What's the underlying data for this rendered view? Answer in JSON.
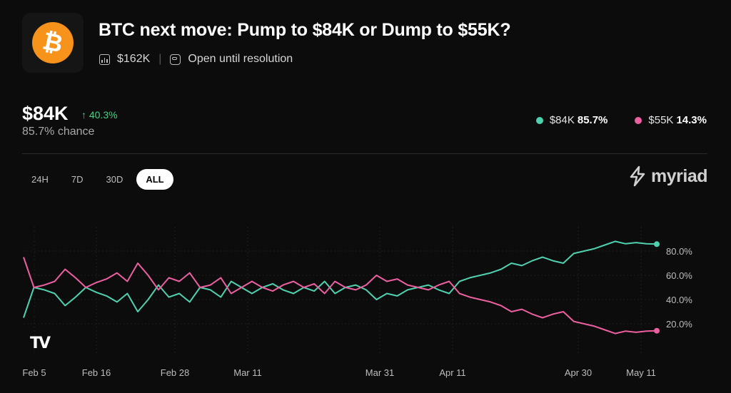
{
  "header": {
    "logo_icon": "bitcoin-logo",
    "logo_glyph": "₿",
    "title": "BTC next move: Pump to $84K or Dump to $55K?",
    "volume": "$162K",
    "volume_icon": "chart-box-icon",
    "status": "Open until resolution",
    "status_icon": "infinity-box-icon"
  },
  "summary": {
    "price": "$84K",
    "change": "↑ 40.3%",
    "chance": "85.7% chance"
  },
  "legend": [
    {
      "label": "$84K",
      "value": "85.7%",
      "color": "#4fd1b0"
    },
    {
      "label": "$55K",
      "value": "14.3%",
      "color": "#ec5fa0"
    }
  ],
  "tabs": [
    "24H",
    "7D",
    "30D",
    "ALL"
  ],
  "active_tab": "ALL",
  "brand": "myriad",
  "watermark": "TV",
  "chart_data": {
    "type": "line",
    "x_ticks": [
      "Feb 5",
      "Feb 16",
      "Feb 28",
      "Mar 11",
      "Mar 31",
      "Apr 11",
      "Apr 30",
      "May 11"
    ],
    "y_ticks": [
      "20.0%",
      "40.0%",
      "60.0%",
      "80.0%"
    ],
    "ylim": [
      0,
      100
    ],
    "grid": true,
    "y_axis_position": "right",
    "series": [
      {
        "name": "$84K",
        "color": "#4fd1b0",
        "values": [
          25,
          50,
          48,
          45,
          35,
          42,
          50,
          46,
          43,
          38,
          45,
          30,
          40,
          52,
          42,
          45,
          38,
          50,
          48,
          42,
          55,
          50,
          45,
          50,
          53,
          48,
          45,
          50,
          47,
          55,
          45,
          50,
          52,
          48,
          40,
          45,
          43,
          48,
          50,
          52,
          48,
          45,
          55,
          58,
          60,
          62,
          65,
          70,
          68,
          72,
          75,
          72,
          70,
          78,
          80,
          82,
          85,
          88,
          86,
          87,
          86,
          85.7
        ]
      },
      {
        "name": "$55K",
        "color": "#ec5fa0",
        "values": [
          75,
          50,
          52,
          55,
          65,
          58,
          50,
          54,
          57,
          62,
          55,
          70,
          60,
          48,
          58,
          55,
          62,
          50,
          52,
          58,
          45,
          50,
          55,
          50,
          47,
          52,
          55,
          50,
          53,
          45,
          55,
          50,
          48,
          52,
          60,
          55,
          57,
          52,
          50,
          48,
          52,
          55,
          45,
          42,
          40,
          38,
          35,
          30,
          32,
          28,
          25,
          28,
          30,
          22,
          20,
          18,
          15,
          12,
          14,
          13,
          14,
          14.3
        ]
      }
    ]
  }
}
